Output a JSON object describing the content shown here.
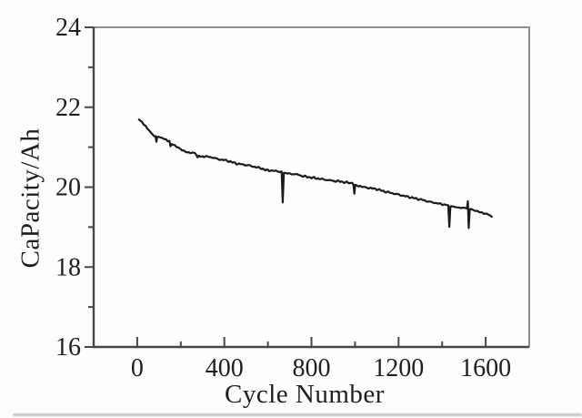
{
  "figure": {
    "background": "#fdfdfb",
    "plot_background": "#fefefe",
    "axis_color": "#474747",
    "box_border_color": "#8f8f8f",
    "line_color": "#1b1b1b",
    "text_color": "#1f1f1f"
  },
  "chart_data": {
    "type": "line",
    "title": "",
    "xlabel": "Cycle Number",
    "ylabel": "CaPacity/Ah",
    "xlim": [
      -200,
      1800
    ],
    "ylim": [
      16,
      24
    ],
    "grid": false,
    "legend_position": "none",
    "x_major_ticks": [
      0,
      400,
      800,
      1200,
      1600
    ],
    "x_tick_labels": [
      "0",
      "400",
      "800",
      "1200",
      "1600"
    ],
    "x_minor_ticks": [
      200,
      600,
      1000,
      1400
    ],
    "y_major_ticks": [
      16,
      18,
      20,
      22,
      24
    ],
    "y_tick_labels": [
      "16",
      "18",
      "20",
      "22",
      "24"
    ],
    "y_minor_ticks": [
      17,
      19,
      21,
      23
    ],
    "noise_amplitude_ah": 0.028,
    "series": [
      {
        "name": "capacity",
        "points": [
          [
            8,
            21.7
          ],
          [
            15,
            21.66
          ],
          [
            22,
            21.62
          ],
          [
            30,
            21.57
          ],
          [
            38,
            21.52
          ],
          [
            46,
            21.46
          ],
          [
            54,
            21.42
          ],
          [
            62,
            21.37
          ],
          [
            70,
            21.32
          ],
          [
            78,
            21.29
          ],
          [
            84,
            21.27
          ],
          [
            88,
            21.14
          ],
          [
            92,
            21.26
          ],
          [
            100,
            21.25
          ],
          [
            108,
            21.23
          ],
          [
            116,
            21.22
          ],
          [
            124,
            21.2
          ],
          [
            132,
            21.19
          ],
          [
            140,
            21.17
          ],
          [
            148,
            21.15
          ],
          [
            153,
            21.02
          ],
          [
            158,
            21.08
          ],
          [
            165,
            21.06
          ],
          [
            172,
            21.05
          ],
          [
            180,
            21.01
          ],
          [
            188,
            20.98
          ],
          [
            196,
            20.96
          ],
          [
            205,
            20.93
          ],
          [
            215,
            20.91
          ],
          [
            225,
            20.89
          ],
          [
            235,
            20.88
          ],
          [
            245,
            20.87
          ],
          [
            255,
            20.86
          ],
          [
            265,
            20.85
          ],
          [
            272,
            20.8
          ],
          [
            277,
            20.74
          ],
          [
            283,
            20.79
          ],
          [
            290,
            20.78
          ],
          [
            300,
            20.77
          ],
          [
            312,
            20.77
          ],
          [
            324,
            20.76
          ],
          [
            336,
            20.75
          ],
          [
            348,
            20.74
          ],
          [
            360,
            20.72
          ],
          [
            372,
            20.7
          ],
          [
            384,
            20.69
          ],
          [
            396,
            20.68
          ],
          [
            408,
            20.67
          ],
          [
            420,
            20.65
          ],
          [
            432,
            20.63
          ],
          [
            444,
            20.61
          ],
          [
            456,
            20.59
          ],
          [
            468,
            20.58
          ],
          [
            480,
            20.57
          ],
          [
            492,
            20.56
          ],
          [
            504,
            20.55
          ],
          [
            516,
            20.54
          ],
          [
            528,
            20.52
          ],
          [
            540,
            20.51
          ],
          [
            552,
            20.49
          ],
          [
            564,
            20.48
          ],
          [
            576,
            20.46
          ],
          [
            588,
            20.43
          ],
          [
            600,
            20.42
          ],
          [
            612,
            20.42
          ],
          [
            624,
            20.41
          ],
          [
            636,
            20.4
          ],
          [
            648,
            20.4
          ],
          [
            658,
            20.39
          ],
          [
            663,
            20.37
          ],
          [
            668,
            19.63
          ],
          [
            673,
            20.36
          ],
          [
            680,
            20.35
          ],
          [
            692,
            20.34
          ],
          [
            704,
            20.33
          ],
          [
            716,
            20.33
          ],
          [
            728,
            20.32
          ],
          [
            740,
            20.31
          ],
          [
            752,
            20.29
          ],
          [
            764,
            20.27
          ],
          [
            776,
            20.26
          ],
          [
            788,
            20.25
          ],
          [
            800,
            20.24
          ],
          [
            812,
            20.23
          ],
          [
            824,
            20.22
          ],
          [
            836,
            20.21
          ],
          [
            848,
            20.2
          ],
          [
            860,
            20.19
          ],
          [
            872,
            20.18
          ],
          [
            884,
            20.17
          ],
          [
            896,
            20.16
          ],
          [
            908,
            20.15
          ],
          [
            920,
            20.15
          ],
          [
            932,
            20.14
          ],
          [
            944,
            20.13
          ],
          [
            956,
            20.12
          ],
          [
            968,
            20.11
          ],
          [
            980,
            20.1
          ],
          [
            988,
            20.09
          ],
          [
            993,
            20.08
          ],
          [
            997,
            19.83
          ],
          [
            1001,
            20.05
          ],
          [
            1008,
            20.03
          ],
          [
            1016,
            20.02
          ],
          [
            1024,
            20.01
          ],
          [
            1032,
            20.01
          ],
          [
            1040,
            20.0
          ],
          [
            1052,
            19.99
          ],
          [
            1064,
            19.98
          ],
          [
            1076,
            19.97
          ],
          [
            1088,
            19.96
          ],
          [
            1100,
            19.95
          ],
          [
            1112,
            19.93
          ],
          [
            1124,
            19.91
          ],
          [
            1136,
            19.89
          ],
          [
            1148,
            19.88
          ],
          [
            1160,
            19.86
          ],
          [
            1172,
            19.85
          ],
          [
            1184,
            19.83
          ],
          [
            1196,
            19.82
          ],
          [
            1208,
            19.8
          ],
          [
            1220,
            19.79
          ],
          [
            1232,
            19.77
          ],
          [
            1244,
            19.76
          ],
          [
            1256,
            19.74
          ],
          [
            1268,
            19.73
          ],
          [
            1280,
            19.71
          ],
          [
            1292,
            19.7
          ],
          [
            1304,
            19.69
          ],
          [
            1316,
            19.67
          ],
          [
            1328,
            19.65
          ],
          [
            1340,
            19.64
          ],
          [
            1352,
            19.62
          ],
          [
            1364,
            19.61
          ],
          [
            1376,
            19.6
          ],
          [
            1388,
            19.58
          ],
          [
            1400,
            19.57
          ],
          [
            1410,
            19.56
          ],
          [
            1420,
            19.55
          ],
          [
            1428,
            19.54
          ],
          [
            1433,
            19.0
          ],
          [
            1438,
            19.52
          ],
          [
            1448,
            19.52
          ],
          [
            1458,
            19.51
          ],
          [
            1468,
            19.51
          ],
          [
            1478,
            19.5
          ],
          [
            1488,
            19.49
          ],
          [
            1498,
            19.48
          ],
          [
            1508,
            19.47
          ],
          [
            1514,
            19.47
          ],
          [
            1518,
            19.62
          ],
          [
            1522,
            18.98
          ],
          [
            1527,
            19.45
          ],
          [
            1534,
            19.44
          ],
          [
            1542,
            19.43
          ],
          [
            1552,
            19.41
          ],
          [
            1562,
            19.4
          ],
          [
            1572,
            19.38
          ],
          [
            1582,
            19.37
          ],
          [
            1592,
            19.35
          ],
          [
            1602,
            19.34
          ],
          [
            1612,
            19.32
          ],
          [
            1620,
            19.3
          ],
          [
            1628,
            19.26
          ]
        ]
      }
    ]
  }
}
